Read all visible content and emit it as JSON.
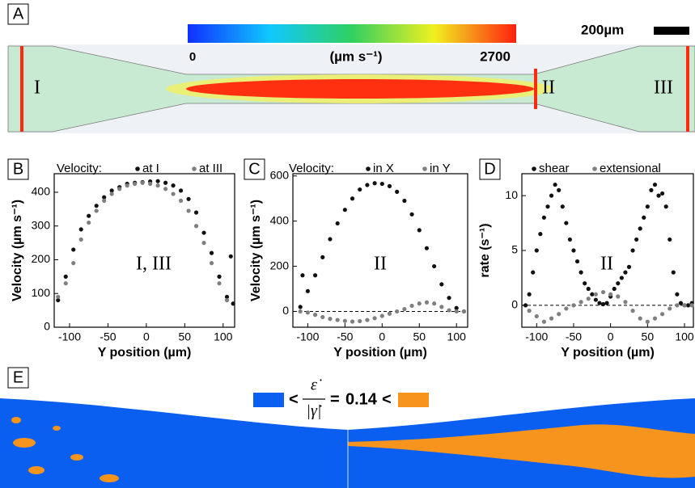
{
  "panel_a": {
    "label": "A",
    "colorbar": {
      "lim": [
        0,
        2700
      ],
      "unit": "(µm s⁻¹)"
    },
    "scale_bar": "200µm",
    "regions": [
      "I",
      "II",
      "III"
    ]
  },
  "panel_e": {
    "label": "E",
    "formula": {
      "left": "<",
      "numerator": "ε̇",
      "denominator": "|γ̇|",
      "equals": "=",
      "value": 0.14,
      "right": "<"
    },
    "colors": [
      "#0a5ff0",
      "#f7941d"
    ]
  },
  "chart_data": [
    {
      "type": "scatter",
      "panel": "B",
      "legend_title": "Velocity:",
      "annotation": "I, III",
      "xlabel": "Y position (µm)",
      "ylabel": "Velocity (µm s⁻¹)",
      "xlim": [
        -120,
        115
      ],
      "ylim": [
        0,
        455
      ],
      "xticks": [
        -100,
        -50,
        0,
        50,
        100
      ],
      "yticks": [
        0,
        100,
        200,
        300,
        400
      ],
      "zero_line": false,
      "series": [
        {
          "name": "at I",
          "color": "#111111",
          "x": [
            -115,
            -105,
            -95,
            -85,
            -75,
            -65,
            -55,
            -45,
            -35,
            -25,
            -15,
            -5,
            5,
            15,
            25,
            35,
            45,
            55,
            65,
            75,
            85,
            95,
            105,
            110,
            113
          ],
          "values": [
            80,
            150,
            230,
            290,
            330,
            360,
            385,
            405,
            415,
            425,
            428,
            430,
            432,
            433,
            428,
            420,
            405,
            380,
            340,
            280,
            220,
            150,
            90,
            210,
            70
          ]
        },
        {
          "name": "at III",
          "color": "#7f7f7f",
          "x": [
            -115,
            -105,
            -95,
            -85,
            -75,
            -65,
            -55,
            -45,
            -35,
            -25,
            -15,
            -5,
            5,
            15,
            25,
            35,
            45,
            55,
            65,
            75,
            85,
            95,
            105
          ],
          "values": [
            90,
            130,
            190,
            260,
            310,
            345,
            375,
            395,
            410,
            420,
            425,
            428,
            425,
            420,
            410,
            395,
            375,
            345,
            300,
            250,
            190,
            130,
            80
          ]
        }
      ]
    },
    {
      "type": "scatter",
      "panel": "C",
      "legend_title": "Velocity:",
      "annotation": "II",
      "xlabel": "Y position (µm)",
      "ylabel": "Velocity (µm s⁻¹)",
      "xlim": [
        -120,
        115
      ],
      "ylim": [
        -70,
        610
      ],
      "xticks": [
        -100,
        -50,
        0,
        50,
        100
      ],
      "yticks": [
        0,
        200,
        400,
        600
      ],
      "zero_line": true,
      "series": [
        {
          "name": "in X",
          "color": "#111111",
          "x": [
            -110,
            -107,
            -100,
            -90,
            -80,
            -70,
            -60,
            -50,
            -40,
            -30,
            -20,
            -10,
            0,
            10,
            20,
            30,
            40,
            50,
            60,
            70,
            80,
            90,
            100,
            110
          ],
          "values": [
            20,
            160,
            90,
            160,
            240,
            320,
            390,
            450,
            500,
            540,
            560,
            568,
            565,
            555,
            530,
            490,
            430,
            360,
            280,
            200,
            120,
            60,
            15,
            0
          ]
        },
        {
          "name": "in Y",
          "color": "#7f7f7f",
          "x": [
            -110,
            -100,
            -90,
            -80,
            -70,
            -60,
            -50,
            -40,
            -30,
            -20,
            -10,
            0,
            10,
            20,
            30,
            40,
            50,
            60,
            70,
            80,
            90,
            100,
            110
          ],
          "values": [
            0,
            -5,
            -15,
            -25,
            -33,
            -38,
            -42,
            -45,
            -43,
            -38,
            -30,
            -20,
            -10,
            0,
            10,
            25,
            35,
            40,
            35,
            20,
            5,
            0,
            0
          ]
        }
      ]
    },
    {
      "type": "scatter",
      "panel": "D",
      "annotation": "II",
      "xlabel": "Y position (µm)",
      "ylabel": "rate (s⁻¹)",
      "xlim": [
        -120,
        112
      ],
      "ylim": [
        -2,
        12
      ],
      "xticks": [
        -100,
        -50,
        0,
        50,
        100
      ],
      "yticks": [
        0,
        5,
        10
      ],
      "zero_line": true,
      "series": [
        {
          "name": "shear",
          "color": "#111111",
          "x": [
            -115,
            -110,
            -105,
            -100,
            -95,
            -90,
            -85,
            -80,
            -75,
            -70,
            -65,
            -60,
            -55,
            -50,
            -45,
            -40,
            -35,
            -30,
            -25,
            -20,
            -15,
            -10,
            -5,
            0,
            5,
            10,
            15,
            20,
            25,
            30,
            35,
            40,
            45,
            50,
            55,
            60,
            65,
            70,
            75,
            80,
            85,
            90,
            95,
            100,
            105,
            110
          ],
          "values": [
            0,
            1,
            3,
            5,
            6.5,
            8,
            9,
            10,
            11,
            10.5,
            9,
            7.5,
            6,
            5,
            4,
            3,
            2,
            1.5,
            1,
            0.5,
            0.2,
            0.1,
            0.2,
            0.8,
            1.5,
            2,
            2.5,
            3,
            3.5,
            5,
            6,
            7,
            8,
            9,
            10.5,
            11,
            10,
            10.2,
            9,
            6,
            3,
            1,
            0.2,
            0,
            0,
            0.2
          ]
        },
        {
          "name": "extensional",
          "color": "#7f7f7f",
          "x": [
            -110,
            -100,
            -90,
            -80,
            -70,
            -60,
            -50,
            -40,
            -30,
            -20,
            -10,
            0,
            10,
            20,
            30,
            40,
            50,
            60,
            70,
            80,
            90,
            100,
            110
          ],
          "values": [
            -0.5,
            -1,
            -1.5,
            -1.2,
            -0.8,
            -0.3,
            0,
            0.3,
            0.6,
            1,
            1.2,
            1,
            0.8,
            0.3,
            -0.5,
            -1.2,
            -1.5,
            -1.2,
            -0.8,
            -0.3,
            0,
            0,
            0
          ]
        }
      ]
    }
  ]
}
